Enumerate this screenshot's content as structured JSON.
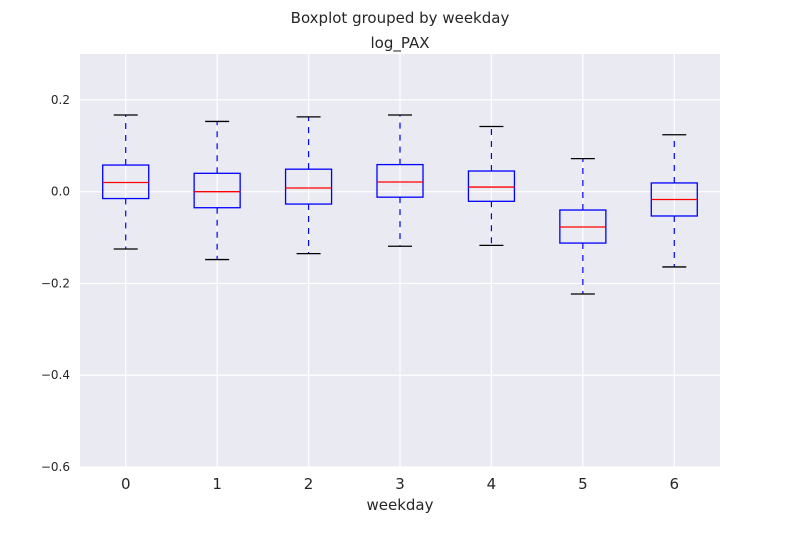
{
  "chart_data": {
    "type": "box",
    "suptitle": "Boxplot grouped by weekday",
    "title": "log_PAX",
    "xlabel": "weekday",
    "ylabel": "",
    "categories": [
      "0",
      "1",
      "2",
      "3",
      "4",
      "5",
      "6"
    ],
    "ylim": [
      -0.6,
      0.3
    ],
    "yticks": [
      {
        "value": 0.2,
        "label": "0.2"
      },
      {
        "value": 0.0,
        "label": "0.0"
      },
      {
        "value": -0.2,
        "label": "−0.2"
      },
      {
        "value": -0.4,
        "label": "−0.4"
      },
      {
        "value": -0.6,
        "label": "−0.6"
      }
    ],
    "boxes": [
      {
        "category": "0",
        "whisker_low": -0.125,
        "q1": -0.015,
        "median": 0.02,
        "q3": 0.058,
        "whisker_high": 0.167
      },
      {
        "category": "1",
        "whisker_low": -0.148,
        "q1": -0.035,
        "median": 0.0,
        "q3": 0.04,
        "whisker_high": 0.153
      },
      {
        "category": "2",
        "whisker_low": -0.135,
        "q1": -0.027,
        "median": 0.008,
        "q3": 0.049,
        "whisker_high": 0.163
      },
      {
        "category": "3",
        "whisker_low": -0.119,
        "q1": -0.012,
        "median": 0.021,
        "q3": 0.059,
        "whisker_high": 0.167
      },
      {
        "category": "4",
        "whisker_low": -0.117,
        "q1": -0.021,
        "median": 0.01,
        "q3": 0.045,
        "whisker_high": 0.142
      },
      {
        "category": "5",
        "whisker_low": -0.223,
        "q1": -0.112,
        "median": -0.077,
        "q3": -0.04,
        "whisker_high": 0.072
      },
      {
        "category": "6",
        "whisker_low": -0.164,
        "q1": -0.053,
        "median": -0.017,
        "q3": 0.019,
        "whisker_high": 0.124
      }
    ],
    "grid": true,
    "legend": "none",
    "colors": {
      "plot_background": "#eaeaf2",
      "grid": "#ffffff",
      "box": "#0000ff",
      "median": "#ff0000",
      "whisker": "#0000ff",
      "cap": "#000000",
      "text": "#262626"
    }
  }
}
